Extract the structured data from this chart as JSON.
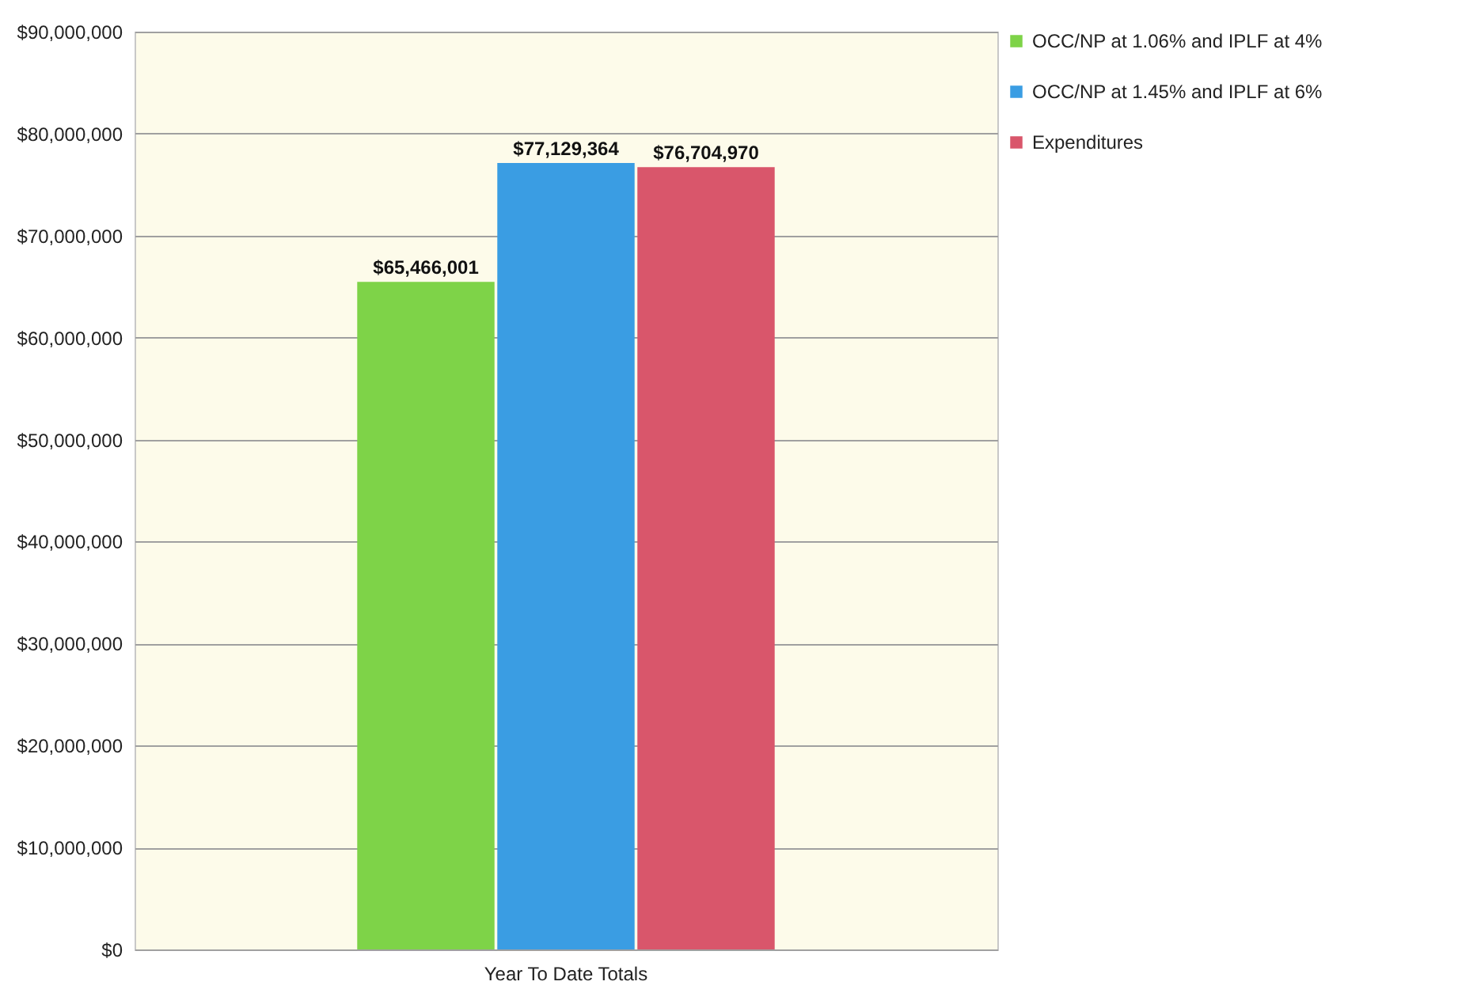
{
  "chart_data": {
    "type": "bar",
    "categories": [
      "Year To Date Totals"
    ],
    "series": [
      {
        "name": "OCC/NP at 1.06% and IPLF at 4%",
        "color": "#7ed348",
        "values": [
          65466001
        ],
        "value_labels": [
          "$65,466,001"
        ]
      },
      {
        "name": "OCC/NP at 1.45% and IPLF at 6%",
        "color": "#3a9de3",
        "values": [
          77129364
        ],
        "value_labels": [
          "$77,129,364"
        ]
      },
      {
        "name": "Expenditures",
        "color": "#d9566b",
        "values": [
          76704970
        ],
        "value_labels": [
          "$76,704,970"
        ]
      }
    ],
    "ylim": [
      0,
      90000000
    ],
    "yticks": [
      {
        "value": 0,
        "label": "$0"
      },
      {
        "value": 10000000,
        "label": "$10,000,000"
      },
      {
        "value": 20000000,
        "label": "$20,000,000"
      },
      {
        "value": 30000000,
        "label": "$30,000,000"
      },
      {
        "value": 40000000,
        "label": "$40,000,000"
      },
      {
        "value": 50000000,
        "label": "$50,000,000"
      },
      {
        "value": 60000000,
        "label": "$60,000,000"
      },
      {
        "value": 70000000,
        "label": "$70,000,000"
      },
      {
        "value": 80000000,
        "label": "$80,000,000"
      },
      {
        "value": 90000000,
        "label": "$90,000,000"
      }
    ],
    "grid": "y",
    "legend": "right"
  }
}
